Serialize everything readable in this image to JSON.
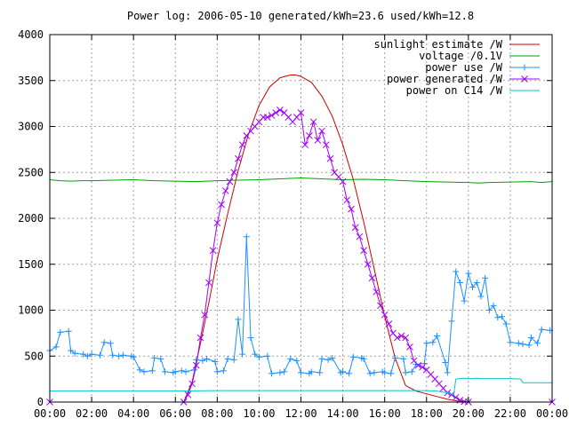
{
  "chart_data": {
    "type": "line",
    "title": "Power log: 2006-05-10 generated/kWh=23.6 used/kWh=12.8",
    "xlabel": "",
    "ylabel": "",
    "x_unit": "hours",
    "xlim": [
      0,
      24
    ],
    "ylim": [
      0,
      4000
    ],
    "grid": true,
    "legend_position": "top-right",
    "x_ticks": [
      {
        "value": 0,
        "label": "00:00"
      },
      {
        "value": 2,
        "label": "02:00"
      },
      {
        "value": 4,
        "label": "04:00"
      },
      {
        "value": 6,
        "label": "06:00"
      },
      {
        "value": 8,
        "label": "08:00"
      },
      {
        "value": 10,
        "label": "10:00"
      },
      {
        "value": 12,
        "label": "12:00"
      },
      {
        "value": 14,
        "label": "14:00"
      },
      {
        "value": 16,
        "label": "16:00"
      },
      {
        "value": 18,
        "label": "18:00"
      },
      {
        "value": 20,
        "label": "20:00"
      },
      {
        "value": 22,
        "label": "22:00"
      },
      {
        "value": 24,
        "label": "00:00"
      }
    ],
    "y_ticks": [
      {
        "value": 0,
        "label": "0"
      },
      {
        "value": 500,
        "label": "500"
      },
      {
        "value": 1000,
        "label": "1000"
      },
      {
        "value": 1500,
        "label": "1500"
      },
      {
        "value": 2000,
        "label": "2000"
      },
      {
        "value": 2500,
        "label": "2500"
      },
      {
        "value": 3000,
        "label": "3000"
      },
      {
        "value": 3500,
        "label": "3500"
      },
      {
        "value": 4000,
        "label": "4000"
      }
    ],
    "series": [
      {
        "name": "sunlight estimate /W",
        "color": "#cc0000",
        "marker": "none",
        "x": [
          0,
          6.4,
          6.8,
          7.2,
          7.6,
          8.0,
          8.5,
          9.0,
          9.5,
          10.0,
          10.5,
          11.0,
          11.5,
          11.75,
          12.0,
          12.5,
          13.0,
          13.5,
          14.0,
          14.5,
          15.0,
          15.5,
          16.0,
          16.5,
          17.0,
          17.5,
          18.0,
          18.5,
          19.0,
          19.5,
          20.0,
          24.0
        ],
        "y": [
          0,
          0,
          220,
          640,
          1080,
          1550,
          2050,
          2520,
          2920,
          3230,
          3430,
          3530,
          3560,
          3560,
          3545,
          3480,
          3330,
          3110,
          2800,
          2420,
          1960,
          1450,
          930,
          480,
          180,
          120,
          90,
          60,
          30,
          10,
          0,
          0
        ]
      },
      {
        "name": "voltage /0.1V",
        "color": "#00a000",
        "marker": "none",
        "x": [
          0,
          0.5,
          1,
          1.5,
          2,
          3,
          4,
          5,
          6,
          7,
          8,
          9,
          10,
          11,
          12,
          13,
          14,
          15,
          16,
          17,
          18,
          19,
          20,
          20.5,
          21,
          22,
          23,
          23.5,
          24
        ],
        "y": [
          2420,
          2410,
          2405,
          2410,
          2410,
          2415,
          2420,
          2410,
          2405,
          2400,
          2410,
          2415,
          2420,
          2430,
          2440,
          2430,
          2420,
          2425,
          2420,
          2410,
          2400,
          2395,
          2390,
          2385,
          2390,
          2395,
          2400,
          2390,
          2400
        ]
      },
      {
        "name": "power use /W",
        "color": "#1e90ff",
        "marker": "plus",
        "x": [
          0.0,
          0.3,
          0.5,
          0.9,
          1.0,
          1.2,
          1.6,
          1.8,
          2.0,
          2.4,
          2.6,
          2.9,
          3.0,
          3.3,
          3.5,
          3.9,
          4.0,
          4.3,
          4.5,
          4.9,
          5.0,
          5.3,
          5.5,
          5.9,
          6.0,
          6.3,
          6.5,
          6.9,
          7.0,
          7.3,
          7.5,
          7.9,
          8.0,
          8.3,
          8.5,
          8.8,
          9.0,
          9.2,
          9.4,
          9.6,
          9.8,
          10.0,
          10.4,
          10.6,
          11.0,
          11.2,
          11.5,
          11.8,
          12.0,
          12.4,
          12.5,
          12.9,
          13.0,
          13.3,
          13.5,
          13.9,
          14.0,
          14.3,
          14.5,
          14.9,
          15.0,
          15.3,
          15.5,
          15.9,
          16.0,
          16.3,
          16.5,
          16.9,
          17.0,
          17.3,
          17.5,
          17.9,
          18.0,
          18.3,
          18.5,
          18.9,
          19.0,
          19.2,
          19.4,
          19.6,
          19.8,
          20.0,
          20.2,
          20.4,
          20.6,
          20.8,
          21.0,
          21.2,
          21.4,
          21.6,
          21.8,
          22.0,
          22.4,
          22.6,
          22.9,
          23.0,
          23.3,
          23.5,
          23.9
        ],
        "y": [
          560,
          600,
          760,
          770,
          560,
          530,
          520,
          500,
          520,
          510,
          650,
          640,
          510,
          500,
          510,
          500,
          490,
          350,
          330,
          340,
          480,
          470,
          330,
          320,
          330,
          340,
          330,
          350,
          460,
          450,
          470,
          440,
          330,
          340,
          470,
          460,
          900,
          520,
          1800,
          700,
          520,
          490,
          500,
          310,
          320,
          330,
          470,
          450,
          320,
          310,
          330,
          320,
          470,
          460,
          480,
          320,
          330,
          310,
          490,
          480,
          470,
          310,
          320,
          330,
          320,
          310,
          480,
          470,
          320,
          330,
          410,
          420,
          640,
          650,
          720,
          430,
          320,
          880,
          1420,
          1300,
          1100,
          1400,
          1250,
          1300,
          1150,
          1350,
          1000,
          1050,
          920,
          930,
          850,
          650,
          640,
          630,
          620,
          700,
          640,
          790,
          780
        ]
      },
      {
        "name": "power generated /W",
        "color": "#a000ff",
        "marker": "cross",
        "x": [
          0,
          6.4,
          6.6,
          6.8,
          7.0,
          7.2,
          7.4,
          7.6,
          7.8,
          8.0,
          8.2,
          8.4,
          8.6,
          8.8,
          9.0,
          9.2,
          9.4,
          9.6,
          9.8,
          10.0,
          10.2,
          10.4,
          10.6,
          10.8,
          11.0,
          11.2,
          11.4,
          11.6,
          11.8,
          12.0,
          12.2,
          12.4,
          12.6,
          12.8,
          13.0,
          13.2,
          13.4,
          13.6,
          13.8,
          14.0,
          14.2,
          14.4,
          14.6,
          14.8,
          15.0,
          15.2,
          15.4,
          15.6,
          15.8,
          16.0,
          16.2,
          16.4,
          16.6,
          16.8,
          17.0,
          17.2,
          17.4,
          17.6,
          17.8,
          18.0,
          18.2,
          18.4,
          18.6,
          18.8,
          19.0,
          19.2,
          19.4,
          19.6,
          19.8,
          20.0,
          24.0
        ],
        "y": [
          0,
          0,
          80,
          200,
          400,
          700,
          950,
          1300,
          1650,
          1950,
          2150,
          2300,
          2400,
          2500,
          2650,
          2800,
          2900,
          2950,
          3000,
          3050,
          3100,
          3100,
          3120,
          3150,
          3180,
          3150,
          3100,
          3050,
          3100,
          3150,
          2800,
          2900,
          3050,
          2850,
          2950,
          2800,
          2650,
          2500,
          2450,
          2400,
          2200,
          2100,
          1900,
          1800,
          1650,
          1500,
          1350,
          1200,
          1050,
          950,
          850,
          750,
          700,
          720,
          700,
          600,
          450,
          400,
          380,
          350,
          300,
          250,
          200,
          150,
          100,
          80,
          50,
          20,
          5,
          0,
          0
        ]
      },
      {
        "name": "power on C14 /W",
        "color": "#00c8c8",
        "marker": "none",
        "x": [
          0,
          2,
          4,
          6,
          8,
          10,
          12,
          14,
          16,
          17,
          18,
          18.5,
          19,
          19.3,
          19.4,
          19.6,
          19.8,
          20.0,
          20.2,
          20.4,
          20.6,
          21,
          22,
          22.5,
          22.6,
          23,
          24
        ],
        "y": [
          120,
          120,
          120,
          120,
          125,
          125,
          125,
          125,
          125,
          125,
          125,
          120,
          100,
          80,
          250,
          255,
          260,
          255,
          255,
          260,
          255,
          255,
          255,
          250,
          210,
          210,
          210
        ]
      }
    ]
  }
}
